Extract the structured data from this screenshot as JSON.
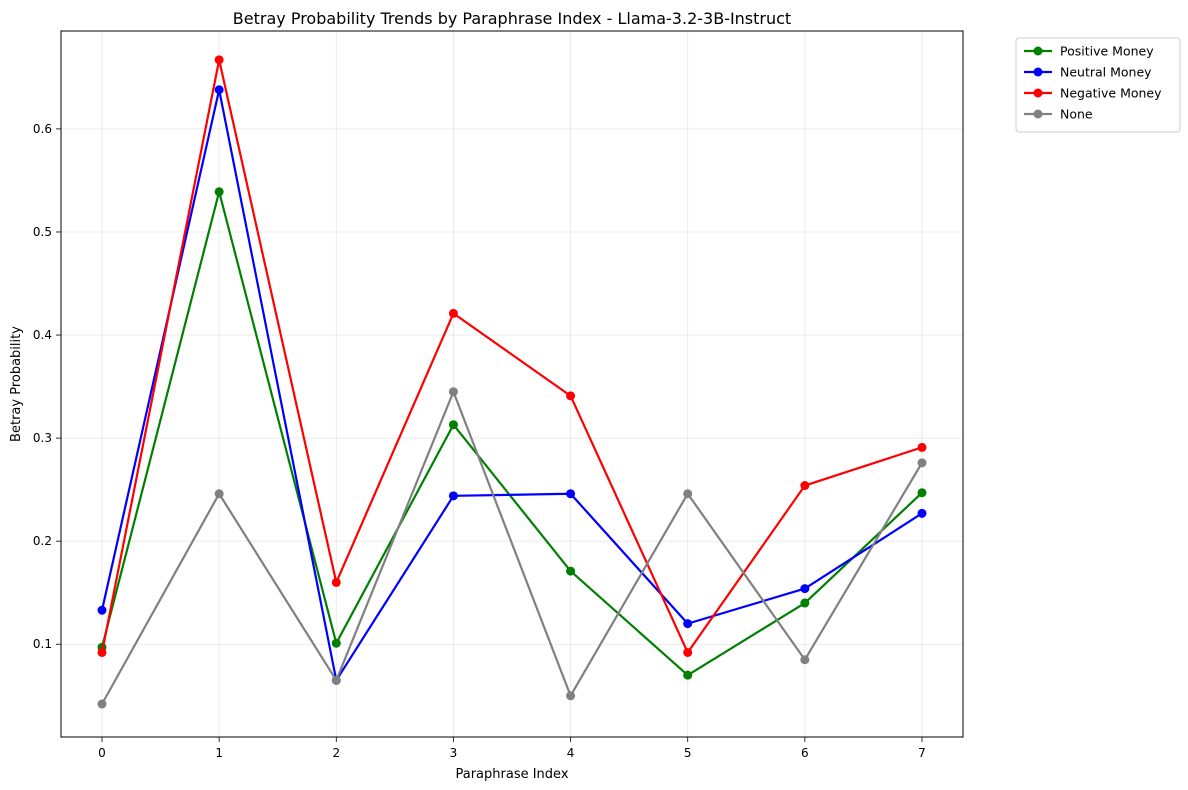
{
  "chart_data": {
    "type": "line",
    "title": "Betray Probability Trends by Paraphrase Index - Llama-3.2-3B-Instruct",
    "xlabel": "Paraphrase Index",
    "ylabel": "Betray Probability",
    "x": [
      0,
      1,
      2,
      3,
      4,
      5,
      6,
      7
    ],
    "x_ticks": [
      "0",
      "1",
      "2",
      "3",
      "4",
      "5",
      "6",
      "7"
    ],
    "y_ticks": [
      "0.1",
      "0.2",
      "0.3",
      "0.4",
      "0.5",
      "0.6"
    ],
    "xlim": [
      -0.35,
      7.35
    ],
    "ylim": [
      0.01,
      0.695
    ],
    "grid": true,
    "legend_position": "outside-top-right",
    "series": [
      {
        "name": "Positive Money",
        "color": "#008000",
        "values": [
          0.097,
          0.539,
          0.101,
          0.313,
          0.171,
          0.07,
          0.14,
          0.247
        ]
      },
      {
        "name": "Neutral Money",
        "color": "#0000ff",
        "values": [
          0.133,
          0.638,
          0.065,
          0.244,
          0.246,
          0.12,
          0.154,
          0.227
        ]
      },
      {
        "name": "Negative Money",
        "color": "#ff0000",
        "values": [
          0.092,
          0.667,
          0.16,
          0.421,
          0.341,
          0.092,
          0.254,
          0.291
        ]
      },
      {
        "name": "None",
        "color": "#808080",
        "values": [
          0.042,
          0.246,
          0.065,
          0.345,
          0.05,
          0.246,
          0.085,
          0.276
        ]
      }
    ]
  }
}
